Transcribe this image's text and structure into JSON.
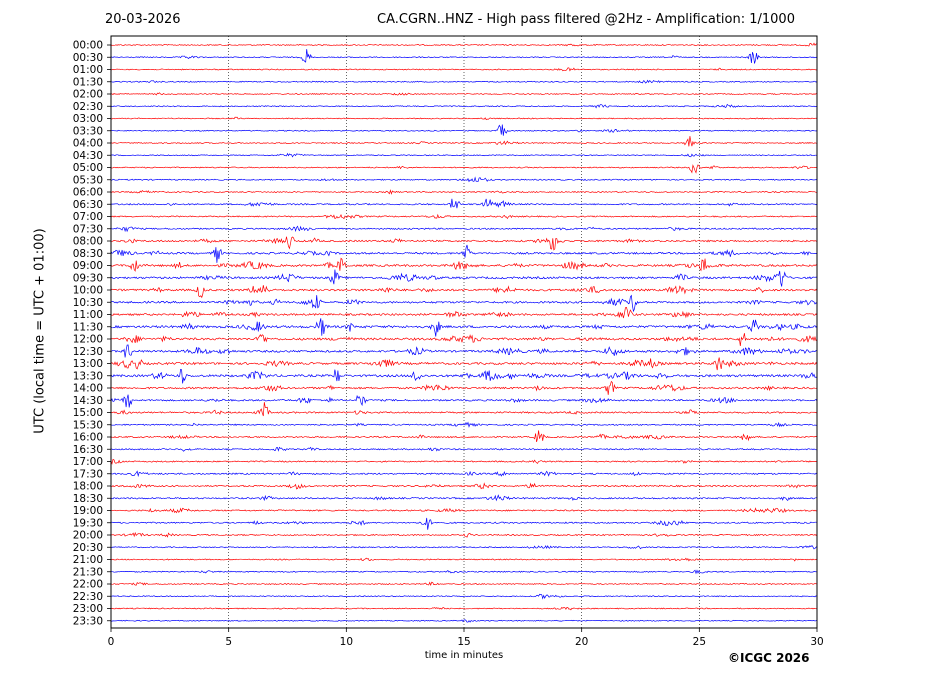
{
  "header": {
    "date": "20-03-2026",
    "title": "CA.CGRN..HNZ - High pass filtered @2Hz - Amplification: 1/1000"
  },
  "footer": {
    "copyright": "©ICGC 2026"
  },
  "chart_data": {
    "type": "line",
    "title": "CA.CGRN..HNZ - High pass filtered @2Hz - Amplification: 1/1000",
    "subtitle": "20-03-2026",
    "xlabel": "time in minutes",
    "ylabel": "UTC (local time = UTC + 01:00)",
    "xlim": [
      0,
      30
    ],
    "xticks": [
      0,
      5,
      10,
      15,
      20,
      25,
      30
    ],
    "xtick_labels": [
      "0",
      "5",
      "10",
      "15",
      "20",
      "25",
      "30"
    ],
    "grid": "vertical dotted at x ticks",
    "trace_colors": [
      "#ff0000",
      "#0000ff"
    ],
    "categories": [
      "00:00",
      "00:30",
      "01:00",
      "01:30",
      "02:00",
      "02:30",
      "03:00",
      "03:30",
      "04:00",
      "04:30",
      "05:00",
      "05:30",
      "06:00",
      "06:30",
      "07:00",
      "07:30",
      "08:00",
      "08:30",
      "09:00",
      "09:30",
      "10:00",
      "10:30",
      "11:00",
      "11:30",
      "12:00",
      "12:30",
      "13:00",
      "13:30",
      "14:00",
      "14:30",
      "15:00",
      "15:30",
      "16:00",
      "16:30",
      "17:00",
      "17:30",
      "18:00",
      "18:30",
      "19:00",
      "19:30",
      "20:00",
      "20:30",
      "21:00",
      "21:30",
      "22:00",
      "22:30",
      "23:00",
      "23:30"
    ],
    "activity_levels": [
      0.15,
      0.15,
      0.15,
      0.15,
      0.12,
      0.15,
      0.12,
      0.12,
      0.15,
      0.12,
      0.18,
      0.18,
      0.2,
      0.35,
      0.3,
      0.35,
      0.55,
      0.6,
      0.75,
      0.7,
      0.7,
      0.65,
      0.65,
      0.9,
      0.8,
      0.75,
      0.8,
      0.85,
      0.6,
      0.5,
      0.45,
      0.3,
      0.35,
      0.3,
      0.3,
      0.4,
      0.4,
      0.4,
      0.35,
      0.35,
      0.25,
      0.2,
      0.18,
      0.18,
      0.15,
      0.15,
      0.12,
      0.08
    ],
    "events": [
      {
        "row": 1,
        "x": 8.3
      },
      {
        "row": 1,
        "x": 27.3
      },
      {
        "row": 7,
        "x": 16.6
      },
      {
        "row": 8,
        "x": 24.6
      },
      {
        "row": 10,
        "x": 24.8
      },
      {
        "row": 13,
        "x": 14.6
      },
      {
        "row": 13,
        "x": 16.0
      },
      {
        "row": 16,
        "x": 7.6
      },
      {
        "row": 16,
        "x": 18.8
      },
      {
        "row": 17,
        "x": 4.5
      },
      {
        "row": 17,
        "x": 15.1
      },
      {
        "row": 18,
        "x": 1.0
      },
      {
        "row": 18,
        "x": 9.8
      },
      {
        "row": 18,
        "x": 25.2
      },
      {
        "row": 19,
        "x": 9.5
      },
      {
        "row": 19,
        "x": 28.5
      },
      {
        "row": 20,
        "x": 3.8
      },
      {
        "row": 20,
        "x": 6.5
      },
      {
        "row": 21,
        "x": 8.7
      },
      {
        "row": 21,
        "x": 22.2
      },
      {
        "row": 22,
        "x": 21.9
      },
      {
        "row": 23,
        "x": 8.9
      },
      {
        "row": 23,
        "x": 13.8
      },
      {
        "row": 23,
        "x": 27.3
      },
      {
        "row": 24,
        "x": 6.4
      },
      {
        "row": 24,
        "x": 26.8
      },
      {
        "row": 25,
        "x": 0.7
      },
      {
        "row": 26,
        "x": 25.8
      },
      {
        "row": 27,
        "x": 3.0
      },
      {
        "row": 27,
        "x": 9.6
      },
      {
        "row": 27,
        "x": 13.0
      },
      {
        "row": 28,
        "x": 21.2
      },
      {
        "row": 29,
        "x": 0.7
      },
      {
        "row": 29,
        "x": 10.6
      },
      {
        "row": 30,
        "x": 6.5
      },
      {
        "row": 32,
        "x": 18.2
      },
      {
        "row": 32,
        "x": 27.0
      },
      {
        "row": 39,
        "x": 13.4
      }
    ]
  }
}
